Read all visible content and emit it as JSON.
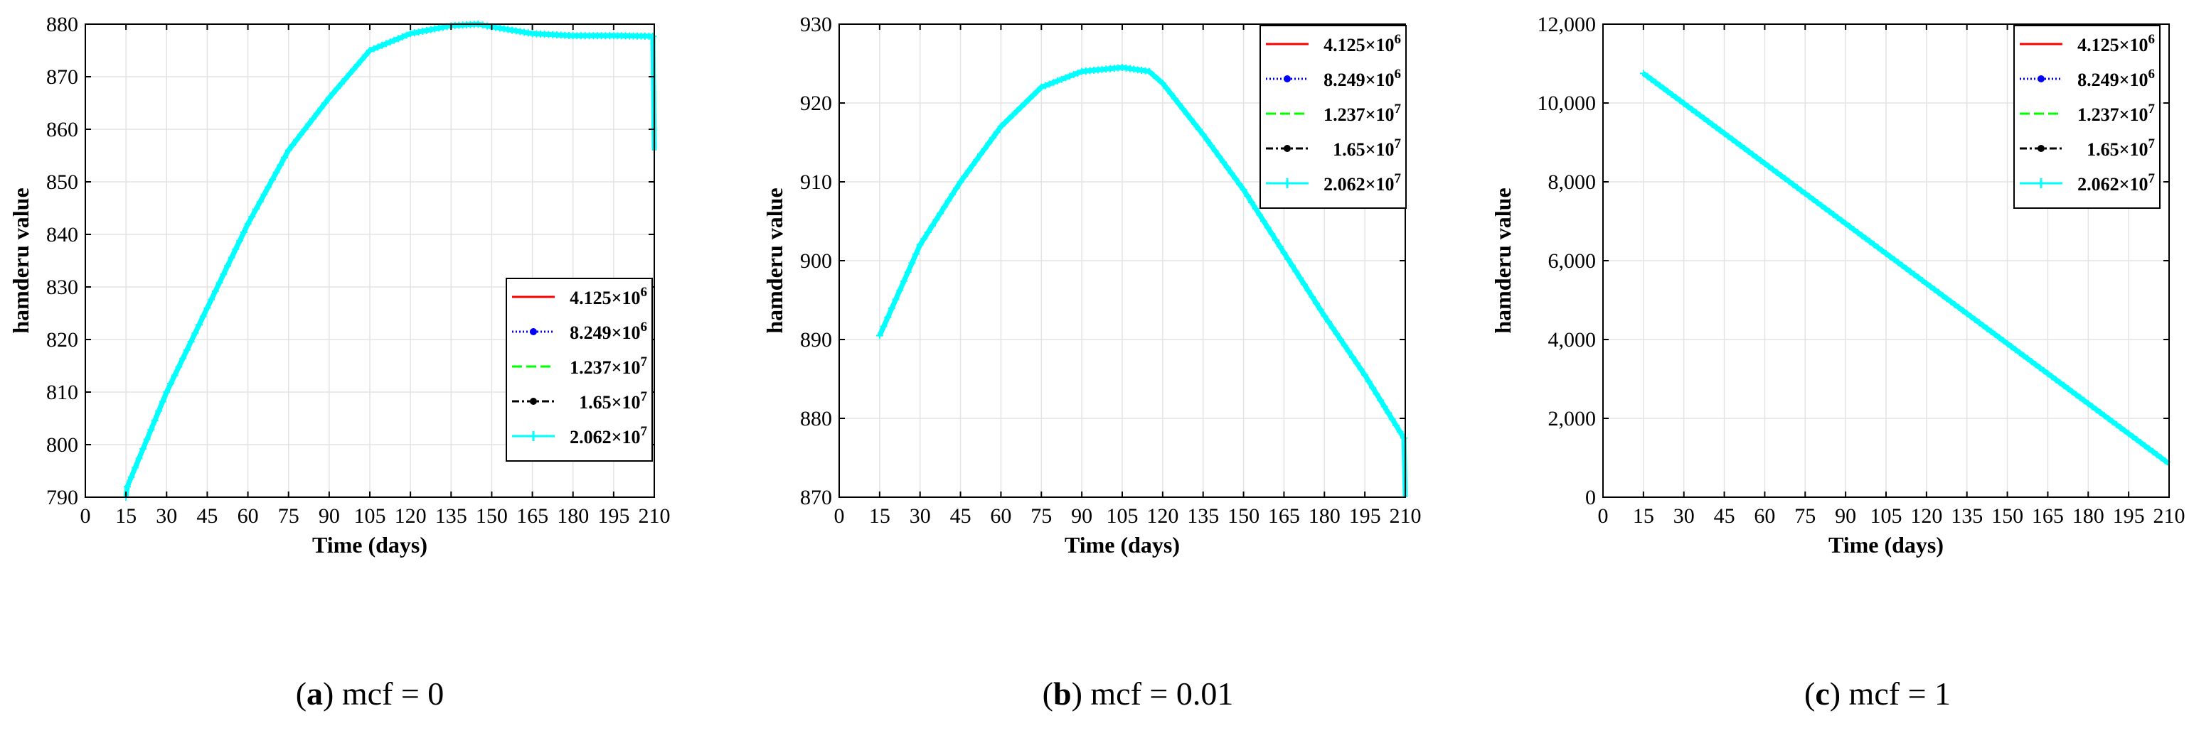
{
  "chart_data": [
    {
      "type": "line",
      "panel_label": "a",
      "caption": "mcf = 0",
      "xlabel": "Time (days)",
      "ylabel": "hamderu value",
      "xlim": [
        0,
        210
      ],
      "ylim": [
        790,
        880
      ],
      "xticks": [
        0,
        15,
        30,
        45,
        60,
        75,
        90,
        105,
        120,
        135,
        150,
        165,
        180,
        195,
        210
      ],
      "yticks": [
        790,
        800,
        810,
        820,
        830,
        840,
        850,
        860,
        870,
        880
      ],
      "ytick_labels": [
        "790",
        "800",
        "810",
        "820",
        "830",
        "840",
        "850",
        "860",
        "870",
        "880"
      ],
      "grid": true,
      "legend_position": "center-right",
      "legend": [
        "4.125×10^6",
        "8.249×10^6",
        "1.237×10^7",
        "1.65×10^7",
        "2.062×10^7"
      ],
      "series": [
        {
          "name": "4.125×10^6",
          "color": "#ff0000"
        },
        {
          "name": "8.249×10^6",
          "color": "#0000ff"
        },
        {
          "name": "1.237×10^7",
          "color": "#00ff00"
        },
        {
          "name": "1.65×10^7",
          "color": "#000000"
        },
        {
          "name": "2.062×10^7",
          "color": "#00ffff"
        }
      ],
      "x": [
        15,
        15.5,
        30,
        45,
        60,
        75,
        90,
        105,
        120,
        135,
        145,
        150,
        165,
        180,
        195,
        209.5,
        210
      ],
      "y": [
        790,
        792,
        810,
        826,
        842,
        856,
        866,
        875,
        878.2,
        879.7,
        880,
        879.5,
        878.2,
        877.8,
        877.8,
        877.7,
        856
      ]
    },
    {
      "type": "line",
      "panel_label": "b",
      "caption": "mcf = 0.01",
      "xlabel": "Time (days)",
      "ylabel": "hamderu value",
      "xlim": [
        0,
        210
      ],
      "ylim": [
        870,
        930
      ],
      "xticks": [
        0,
        15,
        30,
        45,
        60,
        75,
        90,
        105,
        120,
        135,
        150,
        165,
        180,
        195,
        210
      ],
      "yticks": [
        870,
        880,
        890,
        900,
        910,
        920,
        930
      ],
      "ytick_labels": [
        "870",
        "880",
        "890",
        "900",
        "910",
        "920",
        "930"
      ],
      "grid": true,
      "legend_position": "top-right",
      "legend": [
        "4.125×10^6",
        "8.249×10^6",
        "1.237×10^7",
        "1.65×10^7",
        "2.062×10^7"
      ],
      "series": [
        {
          "name": "4.125×10^6",
          "color": "#ff0000"
        },
        {
          "name": "8.249×10^6",
          "color": "#0000ff"
        },
        {
          "name": "1.237×10^7",
          "color": "#00ff00"
        },
        {
          "name": "1.65×10^7",
          "color": "#000000"
        },
        {
          "name": "2.062×10^7",
          "color": "#00ffff"
        }
      ],
      "x": [
        15,
        30,
        45,
        60,
        75,
        90,
        105,
        115,
        120,
        135,
        150,
        165,
        180,
        195,
        209.5,
        210
      ],
      "y": [
        890.5,
        902,
        910,
        917,
        922,
        924,
        924.5,
        924,
        922.5,
        916,
        909,
        901,
        893,
        885.5,
        877.5,
        870
      ]
    },
    {
      "type": "line",
      "panel_label": "c",
      "caption": "mcf = 1",
      "xlabel": "Time (days)",
      "ylabel": "hamderu value",
      "xlim": [
        0,
        210
      ],
      "ylim": [
        0,
        12000
      ],
      "xticks": [
        0,
        15,
        30,
        45,
        60,
        75,
        90,
        105,
        120,
        135,
        150,
        165,
        180,
        195,
        210
      ],
      "yticks": [
        0,
        2000,
        4000,
        6000,
        8000,
        10000,
        12000
      ],
      "ytick_labels": [
        "0",
        "2,000",
        "4,000",
        "6,000",
        "8,000",
        "10,000",
        "12,000"
      ],
      "grid": true,
      "legend_position": "top-right",
      "legend": [
        "4.125×10^6",
        "8.249×10^6",
        "1.237×10^7",
        "1.65×10^7",
        "2.062×10^7"
      ],
      "series": [
        {
          "name": "4.125×10^6",
          "color": "#ff0000"
        },
        {
          "name": "8.249×10^6",
          "color": "#0000ff"
        },
        {
          "name": "1.237×10^7",
          "color": "#00ff00"
        },
        {
          "name": "1.65×10^7",
          "color": "#000000"
        },
        {
          "name": "2.062×10^7",
          "color": "#00ffff"
        }
      ],
      "x": [
        15,
        210
      ],
      "y": [
        10750,
        850
      ]
    }
  ]
}
